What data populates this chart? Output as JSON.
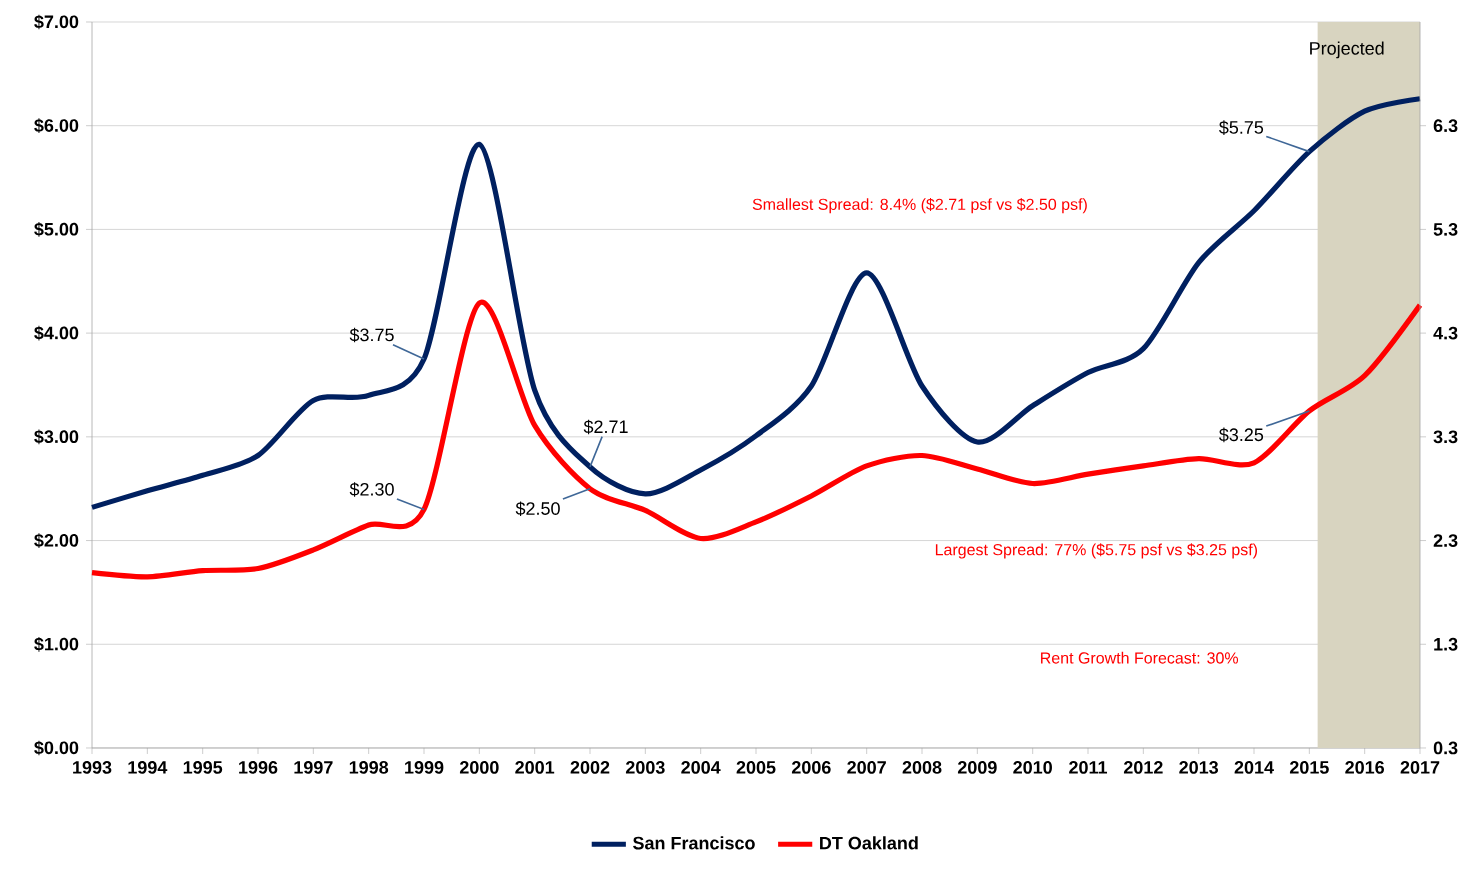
{
  "chart_data": {
    "type": "line",
    "x": [
      1993,
      1994,
      1995,
      1996,
      1997,
      1998,
      1999,
      2000,
      2001,
      2002,
      2003,
      2004,
      2005,
      2006,
      2007,
      2008,
      2009,
      2010,
      2011,
      2012,
      2013,
      2014,
      2015,
      2016,
      2017
    ],
    "series": [
      {
        "name": "San Francisco",
        "color": "#002060",
        "values": [
          2.32,
          2.48,
          2.63,
          2.82,
          3.35,
          3.4,
          3.75,
          5.82,
          3.45,
          2.71,
          2.45,
          2.68,
          3.01,
          3.49,
          4.58,
          3.49,
          2.95,
          3.3,
          3.62,
          3.85,
          4.68,
          5.18,
          5.75,
          6.14,
          6.26
        ]
      },
      {
        "name": "DT Oakland",
        "color": "#ff0000",
        "values": [
          1.69,
          1.65,
          1.71,
          1.73,
          1.91,
          2.15,
          2.3,
          4.29,
          3.11,
          2.5,
          2.29,
          2.02,
          2.18,
          2.43,
          2.72,
          2.82,
          2.69,
          2.55,
          2.64,
          2.72,
          2.79,
          2.75,
          3.25,
          3.59,
          4.27
        ]
      }
    ],
    "xlim": [
      1993,
      2017
    ],
    "xticks": [
      1993,
      1994,
      1995,
      1996,
      1997,
      1998,
      1999,
      2000,
      2001,
      2002,
      2003,
      2004,
      2005,
      2006,
      2007,
      2008,
      2009,
      2010,
      2011,
      2012,
      2013,
      2014,
      2015,
      2016,
      2017
    ],
    "ylim": [
      0,
      7
    ],
    "yticks": [
      {
        "value": 0,
        "label": "$0.00"
      },
      {
        "value": 1,
        "label": "$1.00"
      },
      {
        "value": 2,
        "label": "$2.00"
      },
      {
        "value": 3,
        "label": "$3.00"
      },
      {
        "value": 4,
        "label": "$4.00"
      },
      {
        "value": 5,
        "label": "$5.00"
      },
      {
        "value": 6,
        "label": "$6.00"
      },
      {
        "value": 7,
        "label": "$7.00"
      }
    ],
    "y2lim": [
      0.3,
      7.3
    ],
    "y2ticks": [
      0.3,
      1.3,
      2.3,
      3.3,
      4.3,
      5.3,
      6.3
    ],
    "bands": [
      {
        "axis": "x",
        "from": 2015.15,
        "to": 2017,
        "label": "Projected",
        "color": "#d8d4c0"
      }
    ],
    "annotations": [
      {
        "text": "$3.75",
        "x": 1999,
        "y": 3.75
      },
      {
        "text": "$2.30",
        "x": 1999,
        "y": 2.3
      },
      {
        "text": "$2.71",
        "x": 2002,
        "y": 2.71
      },
      {
        "text": "$2.50",
        "x": 2002,
        "y": 2.5
      },
      {
        "text": "$5.75",
        "x": 2015,
        "y": 5.75
      },
      {
        "text": "$3.25",
        "x": 2015,
        "y": 3.25
      },
      "Smallest Spread: 8.4% ($2.71 psf vs $2.50 psf)",
      "Largest Spread: 77% ($5.75 psf vs $3.25 psf)",
      "Rent Growth Forecast: 30%"
    ],
    "grid": "y",
    "legend": "bottom",
    "line_style": "solid"
  }
}
